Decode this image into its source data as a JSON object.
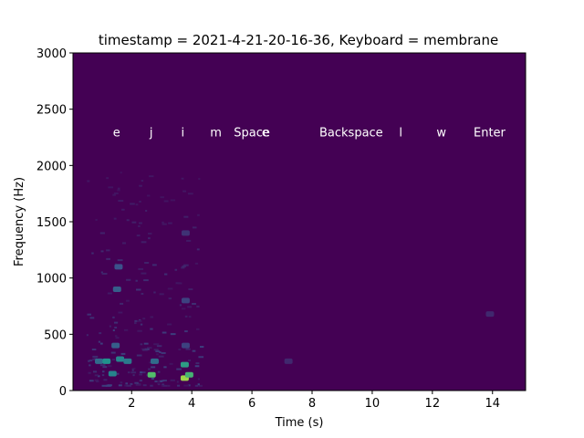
{
  "chart_data": {
    "type": "heatmap",
    "title": "timestamp = 2021-4-21-20-16-36, Keyboard = membrane",
    "xlabel": "Time (s)",
    "ylabel": "Frequency (Hz)",
    "xlim": [
      0.05,
      15.1
    ],
    "ylim": [
      0,
      3000
    ],
    "x_ticks": [
      2,
      4,
      6,
      8,
      10,
      12,
      14
    ],
    "y_ticks": [
      0,
      500,
      1000,
      1500,
      2000,
      2500,
      3000
    ],
    "grid": false,
    "colormap": "viridis",
    "background_color": "#440154",
    "annotations_y": 2300,
    "annotations": [
      {
        "text": "e",
        "x": 1.5
      },
      {
        "text": "j",
        "x": 2.65
      },
      {
        "text": "i",
        "x": 3.7
      },
      {
        "text": "m",
        "x": 4.8
      },
      {
        "text": "Space",
        "x": 6.0
      },
      {
        "text": "e",
        "x": 6.45
      },
      {
        "text": "Backspace",
        "x": 9.3
      },
      {
        "text": "l",
        "x": 10.95
      },
      {
        "text": "w",
        "x": 12.3
      },
      {
        "text": "Enter",
        "x": 13.9
      }
    ],
    "hotspots": [
      {
        "t": 0.9,
        "f": 260,
        "level": 0.35
      },
      {
        "t": 1.15,
        "f": 260,
        "level": 0.5
      },
      {
        "t": 1.35,
        "f": 150,
        "level": 0.45
      },
      {
        "t": 1.45,
        "f": 400,
        "level": 0.3
      },
      {
        "t": 1.5,
        "f": 900,
        "level": 0.3
      },
      {
        "t": 1.55,
        "f": 1100,
        "level": 0.25
      },
      {
        "t": 1.6,
        "f": 280,
        "level": 0.45
      },
      {
        "t": 1.85,
        "f": 260,
        "level": 0.4
      },
      {
        "t": 2.65,
        "f": 140,
        "level": 0.7
      },
      {
        "t": 2.75,
        "f": 260,
        "level": 0.35
      },
      {
        "t": 3.75,
        "f": 230,
        "level": 0.55
      },
      {
        "t": 3.75,
        "f": 110,
        "level": 0.85
      },
      {
        "t": 3.9,
        "f": 140,
        "level": 0.65
      },
      {
        "t": 3.78,
        "f": 400,
        "level": 0.2
      },
      {
        "t": 3.78,
        "f": 800,
        "level": 0.2
      },
      {
        "t": 3.78,
        "f": 1400,
        "level": 0.15
      },
      {
        "t": 7.2,
        "f": 260,
        "level": 0.12
      },
      {
        "t": 13.9,
        "f": 680,
        "level": 0.12
      }
    ]
  }
}
